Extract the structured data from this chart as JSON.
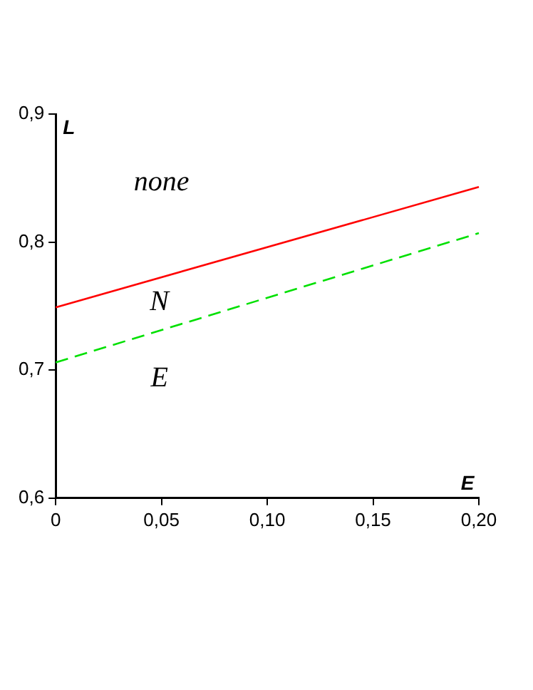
{
  "chart_data": {
    "type": "line",
    "xlabel": "E",
    "ylabel": "L",
    "marker": "none",
    "grid": false,
    "legend": false,
    "xlim": [
      0,
      0.2
    ],
    "ylim": [
      0.6,
      0.9
    ],
    "xticks": [
      0,
      {
        "value": 0.05,
        "label": "0,05"
      },
      {
        "value": 0.1,
        "label": "0,10"
      },
      {
        "value": 0.15,
        "label": "0,15"
      },
      {
        "value": 0.2,
        "label": "0,20"
      }
    ],
    "yticks": [
      {
        "value": 0.6,
        "label": "0,6"
      },
      {
        "value": 0.7,
        "label": "0,7"
      },
      {
        "value": 0.8,
        "label": "0,8"
      },
      {
        "value": 0.9,
        "label": "0,9"
      }
    ],
    "x": [
      0,
      0.2
    ],
    "series": [
      {
        "color": "#ff0000",
        "line_style": "solid",
        "values": [
          0.749,
          0.843
        ]
      },
      {
        "color": "#00e000",
        "line_style": "dashed",
        "values": [
          0.706,
          0.807
        ]
      }
    ],
    "annotations": [
      "none",
      "N",
      "E"
    ]
  }
}
